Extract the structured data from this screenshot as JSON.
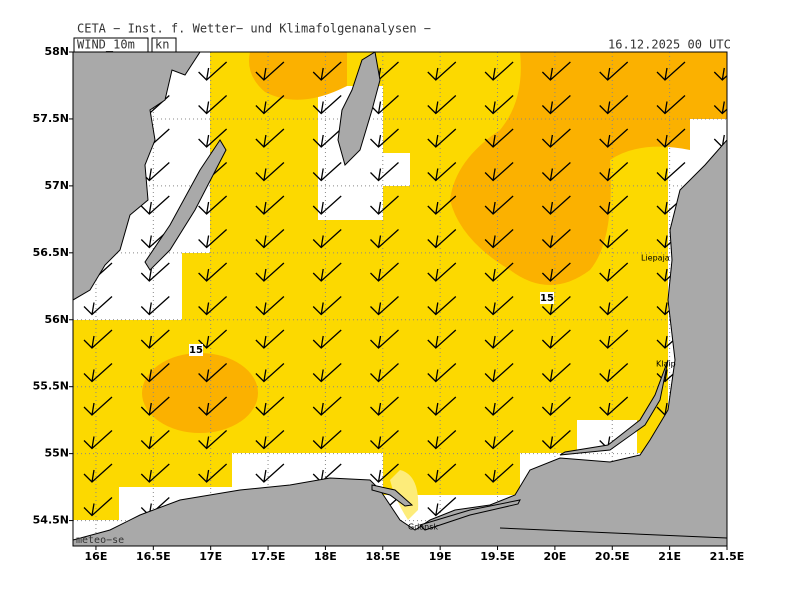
{
  "header": {
    "title": "CETA − Inst. f. Wetter− und Klimafolgenanalysen −",
    "field": "WIND_10m",
    "unit": "kn",
    "valid_time": "16.12.2025 00 UTC",
    "credit": "meteo−se"
  },
  "map": {
    "xlim": [
      15.8,
      21.5
    ],
    "ylim": [
      54.31,
      58
    ],
    "lon_ticks": [
      {
        "value": 16,
        "label": "16E"
      },
      {
        "value": 16.5,
        "label": "16.5E"
      },
      {
        "value": 17,
        "label": "17E"
      },
      {
        "value": 17.5,
        "label": "17.5E"
      },
      {
        "value": 18,
        "label": "18E"
      },
      {
        "value": 18.5,
        "label": "18.5E"
      },
      {
        "value": 19,
        "label": "19E"
      },
      {
        "value": 19.5,
        "label": "19.5E"
      },
      {
        "value": 20,
        "label": "20E"
      },
      {
        "value": 20.5,
        "label": "20.5E"
      },
      {
        "value": 21,
        "label": "21E"
      },
      {
        "value": 21.5,
        "label": "21.5E"
      }
    ],
    "lat_ticks": [
      {
        "value": 54.5,
        "label": "54.5N"
      },
      {
        "value": 55,
        "label": "55N"
      },
      {
        "value": 55.5,
        "label": "55.5N"
      },
      {
        "value": 56,
        "label": "56N"
      },
      {
        "value": 56.5,
        "label": "56.5N"
      },
      {
        "value": 57,
        "label": "57N"
      },
      {
        "value": 57.5,
        "label": "57.5N"
      },
      {
        "value": 58,
        "label": "58N"
      }
    ],
    "contour_labels": [
      15,
      15
    ],
    "places": [
      "Liepaja",
      "Klaip",
      "Gdansk"
    ]
  }
}
